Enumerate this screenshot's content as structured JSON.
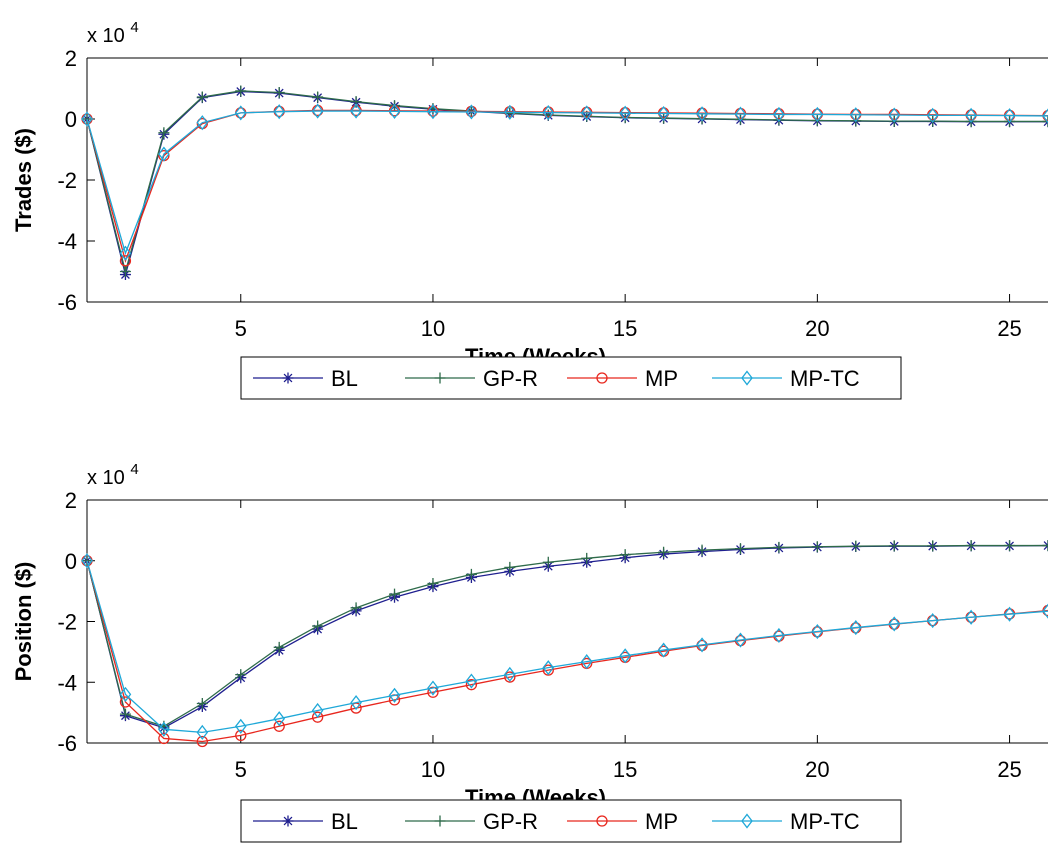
{
  "chart_data": [
    {
      "type": "line",
      "xlabel": "Time (Weeks)",
      "ylabel": "Trades ($)",
      "y_multiplier_prefix": "x 10",
      "y_multiplier_exp": "4",
      "xlim": [
        1,
        26
      ],
      "ylim": [
        -6,
        2
      ],
      "xticks": [
        5,
        10,
        15,
        20,
        25
      ],
      "yticks": [
        -6,
        -4,
        -2,
        0,
        2
      ],
      "grid": false,
      "legend": "below, horizontal",
      "x": [
        1,
        2,
        3,
        4,
        5,
        6,
        7,
        8,
        9,
        10,
        11,
        12,
        13,
        14,
        15,
        16,
        17,
        18,
        19,
        20,
        21,
        22,
        23,
        24,
        25,
        26
      ],
      "series": [
        {
          "name": "BL",
          "color": "#1f1f8f",
          "marker": "star",
          "values": [
            0,
            -5.1,
            -0.5,
            0.7,
            0.9,
            0.85,
            0.7,
            0.55,
            0.42,
            0.32,
            0.25,
            0.18,
            0.12,
            0.08,
            0.04,
            0.02,
            0.0,
            -0.02,
            -0.04,
            -0.06,
            -0.07,
            -0.08,
            -0.08,
            -0.09,
            -0.09,
            -0.09
          ]
        },
        {
          "name": "GP-R",
          "color": "#2e6b4a",
          "marker": "plus",
          "values": [
            0,
            -5.0,
            -0.45,
            0.72,
            0.92,
            0.87,
            0.72,
            0.57,
            0.44,
            0.34,
            0.26,
            0.19,
            0.13,
            0.09,
            0.05,
            0.03,
            0.01,
            -0.01,
            -0.03,
            -0.05,
            -0.06,
            -0.07,
            -0.07,
            -0.08,
            -0.08,
            -0.08
          ]
        },
        {
          "name": "MP",
          "color": "#e8271e",
          "marker": "circle",
          "values": [
            0,
            -4.65,
            -1.2,
            -0.15,
            0.2,
            0.25,
            0.28,
            0.28,
            0.27,
            0.26,
            0.25,
            0.24,
            0.23,
            0.22,
            0.21,
            0.2,
            0.19,
            0.18,
            0.17,
            0.16,
            0.15,
            0.15,
            0.14,
            0.13,
            0.12,
            0.11
          ]
        },
        {
          "name": "MP-TC",
          "color": "#1fa8d8",
          "marker": "diamond",
          "values": [
            0,
            -4.4,
            -1.15,
            -0.12,
            0.2,
            0.24,
            0.26,
            0.26,
            0.25,
            0.24,
            0.23,
            0.22,
            0.21,
            0.2,
            0.19,
            0.18,
            0.17,
            0.16,
            0.15,
            0.15,
            0.14,
            0.13,
            0.12,
            0.12,
            0.11,
            0.1
          ]
        }
      ]
    },
    {
      "type": "line",
      "xlabel": "Time (Weeks)",
      "ylabel": "Position ($)",
      "y_multiplier_prefix": "x 10",
      "y_multiplier_exp": "4",
      "xlim": [
        1,
        26
      ],
      "ylim": [
        -6,
        2
      ],
      "xticks": [
        5,
        10,
        15,
        20,
        25
      ],
      "yticks": [
        -6,
        -4,
        -2,
        0,
        2
      ],
      "grid": false,
      "legend": "below, horizontal",
      "x": [
        1,
        2,
        3,
        4,
        5,
        6,
        7,
        8,
        9,
        10,
        11,
        12,
        13,
        14,
        15,
        16,
        17,
        18,
        19,
        20,
        21,
        22,
        23,
        24,
        25,
        26
      ],
      "series": [
        {
          "name": "BL",
          "color": "#1f1f8f",
          "marker": "star",
          "values": [
            0,
            -5.1,
            -5.5,
            -4.8,
            -3.85,
            -2.95,
            -2.25,
            -1.65,
            -1.2,
            -0.85,
            -0.55,
            -0.35,
            -0.18,
            -0.05,
            0.1,
            0.22,
            0.3,
            0.37,
            0.42,
            0.45,
            0.47,
            0.48,
            0.48,
            0.49,
            0.49,
            0.5
          ]
        },
        {
          "name": "GP-R",
          "color": "#2e6b4a",
          "marker": "plus",
          "values": [
            0,
            -5.05,
            -5.45,
            -4.7,
            -3.75,
            -2.85,
            -2.15,
            -1.55,
            -1.1,
            -0.75,
            -0.45,
            -0.22,
            -0.05,
            0.08,
            0.2,
            0.28,
            0.35,
            0.4,
            0.44,
            0.46,
            0.48,
            0.49,
            0.49,
            0.5,
            0.5,
            0.5
          ]
        },
        {
          "name": "MP",
          "color": "#e8271e",
          "marker": "circle",
          "values": [
            0,
            -4.65,
            -5.85,
            -5.95,
            -5.75,
            -5.45,
            -5.15,
            -4.85,
            -4.58,
            -4.33,
            -4.08,
            -3.83,
            -3.6,
            -3.38,
            -3.18,
            -2.98,
            -2.79,
            -2.63,
            -2.48,
            -2.34,
            -2.21,
            -2.09,
            -1.97,
            -1.86,
            -1.75,
            -1.64
          ]
        },
        {
          "name": "MP-TC",
          "color": "#1fa8d8",
          "marker": "diamond",
          "values": [
            0,
            -4.4,
            -5.55,
            -5.65,
            -5.45,
            -5.2,
            -4.93,
            -4.67,
            -4.43,
            -4.19,
            -3.96,
            -3.74,
            -3.52,
            -3.32,
            -3.13,
            -2.94,
            -2.77,
            -2.61,
            -2.46,
            -2.33,
            -2.2,
            -2.08,
            -1.97,
            -1.86,
            -1.76,
            -1.66
          ]
        }
      ]
    }
  ]
}
